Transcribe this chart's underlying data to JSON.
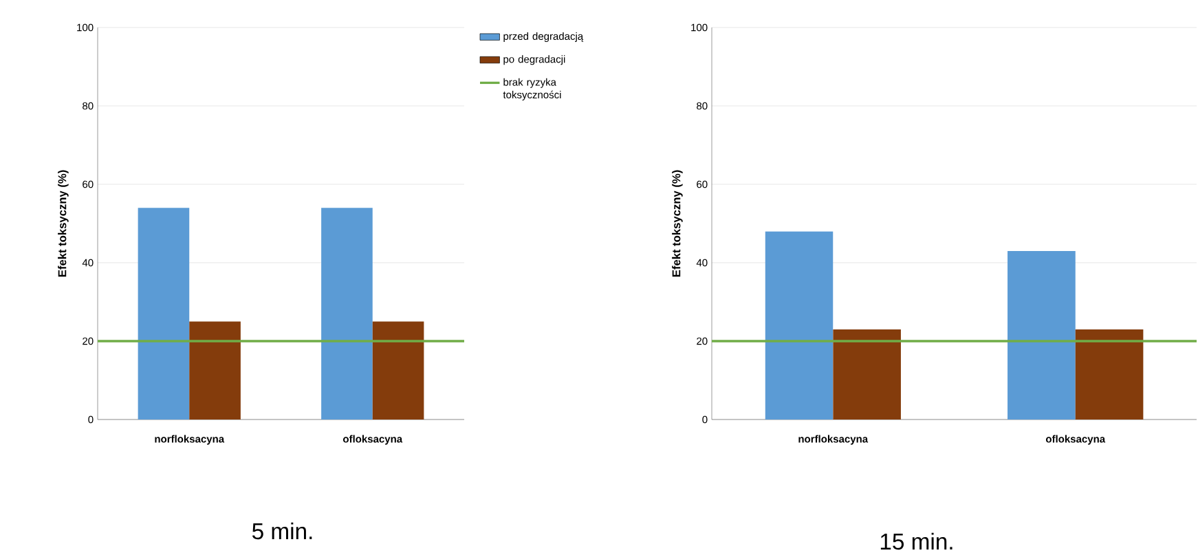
{
  "chart_data": [
    {
      "type": "bar",
      "title": "5 min.",
      "ylabel": "Efekt toksyczny (%)",
      "categories": [
        "norfloksacyna",
        "ofloksacyna"
      ],
      "series": [
        {
          "name": "przed degradacją",
          "color": "#5b9bd5",
          "values": [
            54,
            54
          ]
        },
        {
          "name": "po degradacji",
          "color": "#843c0c",
          "values": [
            25,
            25
          ]
        }
      ],
      "ylim": [
        0,
        100
      ],
      "yticks": [
        0,
        20,
        40,
        60,
        80,
        100
      ],
      "grid": "y",
      "legend": "right",
      "ref_lines": [
        {
          "axis": "y",
          "value": 20,
          "label": "brak ryzyka toksyczności",
          "color": "#70ad47"
        }
      ]
    },
    {
      "type": "bar",
      "title": "15 min.",
      "ylabel": "Efekt toksyczny (%)",
      "categories": [
        "norfloksacyna",
        "ofloksacyna"
      ],
      "series": [
        {
          "color": "#5b9bd5",
          "values": [
            48,
            43
          ]
        },
        {
          "color": "#843c0c",
          "values": [
            23,
            23
          ]
        }
      ],
      "ylim": [
        0,
        100
      ],
      "yticks": [
        0,
        20,
        40,
        60,
        80,
        100
      ],
      "grid": "y",
      "ref_lines": [
        {
          "axis": "y",
          "value": 20,
          "color": "#70ad47"
        }
      ]
    }
  ]
}
